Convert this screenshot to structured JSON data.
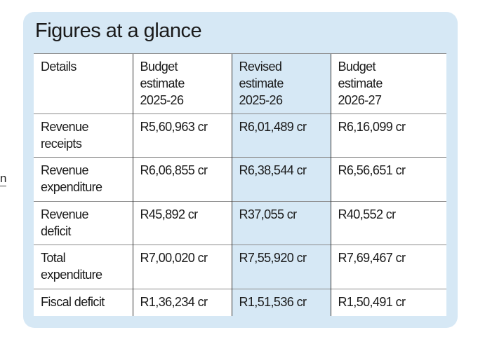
{
  "fragment": "n",
  "header": {
    "title": "Figures at a glance"
  },
  "table": {
    "columns": [
      "Details",
      "Budget\nestimate\n2025-26",
      "Revised\nestimate\n2025-26",
      "Budget\nestimate\n2026-27"
    ],
    "rows": [
      [
        "Revenue\nreceipts",
        "R5,60,963 cr",
        "R6,01,489 cr",
        "R6,16,099 cr"
      ],
      [
        "Revenue\nexpenditure",
        "R6,06,855 cr",
        "R6,38,544 cr",
        "R6,56,651 cr"
      ],
      [
        "Revenue\ndeficit",
        "R45,892 cr",
        "R37,055 cr",
        "R40,552 cr"
      ],
      [
        "Total\nexpenditure",
        "R7,00,020 cr",
        "R7,55,920 cr",
        "R7,69,467 cr"
      ],
      [
        "Fiscal deficit",
        "R1,36,234 cr",
        "R1,51,536 cr",
        "R1,50,491 cr"
      ]
    ]
  }
}
